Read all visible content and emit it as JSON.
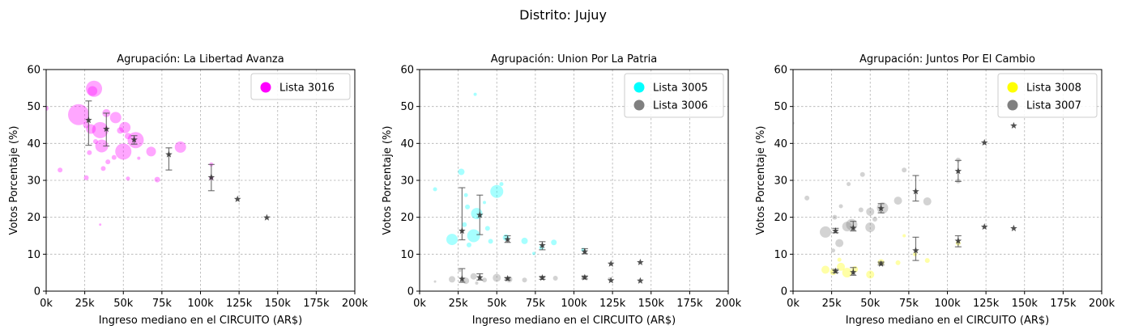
{
  "figure": {
    "suptitle": "Distrito: Jujuy"
  },
  "chart_data": [
    {
      "type": "scatter",
      "title": "Agrupación: La Libertad Avanza",
      "xlabel": "Ingreso mediano en el CIRCUITO (AR$)",
      "ylabel": "Votos Porcentaje (%)",
      "xlim": [
        0,
        200000
      ],
      "ylim": [
        0,
        60
      ],
      "xticks": [
        0,
        25000,
        50000,
        75000,
        100000,
        125000,
        150000,
        175000,
        200000
      ],
      "xtick_labels": [
        "0k",
        "25k",
        "50k",
        "75k",
        "100k",
        "125k",
        "150k",
        "175k",
        "200k"
      ],
      "yticks": [
        0,
        10,
        20,
        30,
        40,
        50,
        60
      ],
      "grid": true,
      "legend_position": "top-right",
      "series": [
        {
          "name": "Lista 3016",
          "color": "#ff00ff",
          "points": [
            {
              "x": 21000,
              "y": 47.8,
              "s": 13
            },
            {
              "x": 31000,
              "y": 54.8,
              "s": 10
            },
            {
              "x": 30000,
              "y": 54.2,
              "s": 6
            },
            {
              "x": 35000,
              "y": 43.6,
              "s": 10
            },
            {
              "x": 29000,
              "y": 43.9,
              "s": 6
            },
            {
              "x": 36000,
              "y": 39.3,
              "s": 8
            },
            {
              "x": 50000,
              "y": 37.8,
              "s": 10
            },
            {
              "x": 58000,
              "y": 40.9,
              "s": 10
            },
            {
              "x": 45000,
              "y": 47.0,
              "s": 7
            },
            {
              "x": 51000,
              "y": 44.3,
              "s": 7
            },
            {
              "x": 68000,
              "y": 37.8,
              "s": 6
            },
            {
              "x": 87000,
              "y": 39.0,
              "s": 7
            },
            {
              "x": 39000,
              "y": 48.2,
              "s": 5
            },
            {
              "x": 48000,
              "y": 43.5,
              "s": 4
            },
            {
              "x": 26000,
              "y": 45.0,
              "s": 4
            },
            {
              "x": 53000,
              "y": 42.0,
              "s": 4
            },
            {
              "x": 28000,
              "y": 37.5,
              "s": 3
            },
            {
              "x": 44000,
              "y": 36.2,
              "s": 3
            },
            {
              "x": 40000,
              "y": 35.0,
              "s": 3
            },
            {
              "x": 37000,
              "y": 33.2,
              "s": 3
            },
            {
              "x": 9000,
              "y": 32.8,
              "s": 3
            },
            {
              "x": 26000,
              "y": 30.7,
              "s": 3
            },
            {
              "x": 53000,
              "y": 30.5,
              "s": 2.5
            },
            {
              "x": 72000,
              "y": 30.2,
              "s": 3.5
            },
            {
              "x": 107000,
              "y": 34.3,
              "s": 2.5
            },
            {
              "x": 107000,
              "y": 30.6,
              "s": 2.5
            },
            {
              "x": 35000,
              "y": 18.0,
              "s": 1.5
            },
            {
              "x": 60000,
              "y": 36.0,
              "s": 2
            },
            {
              "x": 0,
              "y": 49.5,
              "s": 3
            },
            {
              "x": 32000,
              "y": 40.5,
              "s": 3
            }
          ]
        }
      ],
      "summary_stars": [
        {
          "x": 27500,
          "y": 46.3,
          "lo": 39.5,
          "hi": 51.5
        },
        {
          "x": 39000,
          "y": 43.9,
          "lo": 39.3,
          "hi": 48.2
        },
        {
          "x": 57000,
          "y": 41.0,
          "lo": 39.8,
          "hi": 42.1
        },
        {
          "x": 79500,
          "y": 37.0,
          "lo": 32.8,
          "hi": 38.8
        },
        {
          "x": 107000,
          "y": 30.8,
          "lo": 27.2,
          "hi": 34.3
        },
        {
          "x": 124000,
          "y": 24.9,
          "lo": 24.9,
          "hi": 24.9
        },
        {
          "x": 143000,
          "y": 19.9,
          "lo": 19.9,
          "hi": 19.9
        }
      ]
    },
    {
      "type": "scatter",
      "title": "Agrupación: Union Por La Patria",
      "xlabel": "Ingreso mediano en el CIRCUITO (AR$)",
      "ylabel": "Votos Porcentaje (%)",
      "xlim": [
        0,
        200000
      ],
      "ylim": [
        0,
        60
      ],
      "xticks": [
        0,
        25000,
        50000,
        75000,
        100000,
        125000,
        150000,
        175000,
        200000
      ],
      "xtick_labels": [
        "0k",
        "25k",
        "50k",
        "75k",
        "100k",
        "125k",
        "150k",
        "175k",
        "200k"
      ],
      "yticks": [
        0,
        10,
        20,
        30,
        40,
        50,
        60
      ],
      "grid": true,
      "legend_position": "top-right",
      "series": [
        {
          "name": "Lista 3005",
          "color": "#00ffff",
          "points": [
            {
              "x": 21000,
              "y": 14.0,
              "s": 7
            },
            {
              "x": 35000,
              "y": 15.0,
              "s": 8
            },
            {
              "x": 37000,
              "y": 21.0,
              "s": 7
            },
            {
              "x": 50000,
              "y": 27.0,
              "s": 8
            },
            {
              "x": 27000,
              "y": 32.3,
              "s": 4
            },
            {
              "x": 36000,
              "y": 53.3,
              "s": 2
            },
            {
              "x": 10000,
              "y": 27.6,
              "s": 2.5
            },
            {
              "x": 30000,
              "y": 26.0,
              "s": 2.5
            },
            {
              "x": 31000,
              "y": 22.8,
              "s": 3
            },
            {
              "x": 29000,
              "y": 18.0,
              "s": 3
            },
            {
              "x": 44000,
              "y": 17.0,
              "s": 3
            },
            {
              "x": 46000,
              "y": 13.5,
              "s": 3
            },
            {
              "x": 56000,
              "y": 14.5,
              "s": 4
            },
            {
              "x": 68000,
              "y": 13.6,
              "s": 4
            },
            {
              "x": 87000,
              "y": 13.2,
              "s": 3.5
            },
            {
              "x": 79000,
              "y": 11.8,
              "s": 3
            },
            {
              "x": 106000,
              "y": 11.2,
              "s": 2.5
            },
            {
              "x": 53000,
              "y": 29.0,
              "s": 2.5
            },
            {
              "x": 32000,
              "y": 12.5,
              "s": 3
            },
            {
              "x": 42000,
              "y": 24.0,
              "s": 2
            },
            {
              "x": 74000,
              "y": 10.2,
              "s": 2
            }
          ]
        },
        {
          "name": "Lista 3006",
          "color": "#808080",
          "points": [
            {
              "x": 21000,
              "y": 3.2,
              "s": 4
            },
            {
              "x": 30000,
              "y": 2.8,
              "s": 4
            },
            {
              "x": 35000,
              "y": 4.0,
              "s": 4
            },
            {
              "x": 42000,
              "y": 3.0,
              "s": 3
            },
            {
              "x": 50000,
              "y": 3.6,
              "s": 5
            },
            {
              "x": 58000,
              "y": 3.2,
              "s": 4
            },
            {
              "x": 68000,
              "y": 3.0,
              "s": 3
            },
            {
              "x": 88000,
              "y": 3.5,
              "s": 3
            },
            {
              "x": 10000,
              "y": 2.6,
              "s": 1.5
            },
            {
              "x": 26000,
              "y": 5.6,
              "s": 2
            },
            {
              "x": 106000,
              "y": 3.7,
              "s": 2
            },
            {
              "x": 123000,
              "y": 3.3,
              "s": 2
            },
            {
              "x": 37000,
              "y": 2.2,
              "s": 2
            }
          ]
        }
      ],
      "summary_stars": [
        {
          "x": 27500,
          "y": 16.3,
          "lo": 13.9,
          "hi": 28.0
        },
        {
          "x": 39000,
          "y": 20.6,
          "lo": 15.3,
          "hi": 26.0
        },
        {
          "x": 57000,
          "y": 14.0,
          "lo": 13.2,
          "hi": 15.0
        },
        {
          "x": 79500,
          "y": 12.4,
          "lo": 11.2,
          "hi": 13.4
        },
        {
          "x": 107000,
          "y": 10.7,
          "lo": 10.1,
          "hi": 11.5
        },
        {
          "x": 124000,
          "y": 7.4,
          "lo": 7.4,
          "hi": 7.4
        },
        {
          "x": 143000,
          "y": 7.8,
          "lo": 7.8,
          "hi": 7.8
        },
        {
          "x": 27500,
          "y": 3.3,
          "lo": 2.4,
          "hi": 6.1
        },
        {
          "x": 39000,
          "y": 3.7,
          "lo": 3.0,
          "hi": 4.7
        },
        {
          "x": 57000,
          "y": 3.4,
          "lo": 3.0,
          "hi": 3.7
        },
        {
          "x": 79500,
          "y": 3.6,
          "lo": 3.2,
          "hi": 4.0
        },
        {
          "x": 107000,
          "y": 3.7,
          "lo": 3.3,
          "hi": 4.1
        },
        {
          "x": 124000,
          "y": 2.9,
          "lo": 2.9,
          "hi": 2.9
        },
        {
          "x": 143000,
          "y": 2.8,
          "lo": 2.8,
          "hi": 2.8
        }
      ]
    },
    {
      "type": "scatter",
      "title": "Agrupación: Juntos Por El Cambio",
      "xlabel": "Ingreso mediano en el CIRCUITO (AR$)",
      "ylabel": "Votos Porcentaje (%)",
      "xlim": [
        0,
        200000
      ],
      "ylim": [
        0,
        60
      ],
      "xticks": [
        0,
        25000,
        50000,
        75000,
        100000,
        125000,
        150000,
        175000,
        200000
      ],
      "xtick_labels": [
        "0k",
        "25k",
        "50k",
        "75k",
        "100k",
        "125k",
        "150k",
        "175k",
        "200k"
      ],
      "yticks": [
        0,
        10,
        20,
        30,
        40,
        50,
        60
      ],
      "grid": true,
      "legend_position": "top-right",
      "series": [
        {
          "name": "Lista 3008",
          "color": "#ffff00",
          "points": [
            {
              "x": 21000,
              "y": 5.8,
              "s": 5
            },
            {
              "x": 26000,
              "y": 5.2,
              "s": 4
            },
            {
              "x": 31000,
              "y": 6.6,
              "s": 5
            },
            {
              "x": 35000,
              "y": 5.0,
              "s": 6
            },
            {
              "x": 40000,
              "y": 5.9,
              "s": 4
            },
            {
              "x": 50000,
              "y": 4.5,
              "s": 5
            },
            {
              "x": 57000,
              "y": 7.8,
              "s": 4
            },
            {
              "x": 68000,
              "y": 7.7,
              "s": 3
            },
            {
              "x": 87000,
              "y": 8.3,
              "s": 3
            },
            {
              "x": 79000,
              "y": 10.0,
              "s": 2.5
            },
            {
              "x": 72000,
              "y": 15.0,
              "s": 2
            },
            {
              "x": 107000,
              "y": 13.0,
              "s": 3
            },
            {
              "x": 30000,
              "y": 8.5,
              "s": 2.5
            }
          ]
        },
        {
          "name": "Lista 3007",
          "color": "#808080",
          "points": [
            {
              "x": 21000,
              "y": 16.0,
              "s": 7
            },
            {
              "x": 30000,
              "y": 13.0,
              "s": 5
            },
            {
              "x": 35000,
              "y": 17.5,
              "s": 6
            },
            {
              "x": 38000,
              "y": 18.0,
              "s": 7
            },
            {
              "x": 50000,
              "y": 17.3,
              "s": 6
            },
            {
              "x": 50000,
              "y": 21.5,
              "s": 5
            },
            {
              "x": 58000,
              "y": 22.5,
              "s": 7
            },
            {
              "x": 68000,
              "y": 24.5,
              "s": 5
            },
            {
              "x": 87000,
              "y": 24.3,
              "s": 5
            },
            {
              "x": 72000,
              "y": 32.8,
              "s": 3
            },
            {
              "x": 107000,
              "y": 35.5,
              "s": 3
            },
            {
              "x": 107000,
              "y": 29.8,
              "s": 3
            },
            {
              "x": 45000,
              "y": 31.6,
              "s": 3
            },
            {
              "x": 9000,
              "y": 25.2,
              "s": 3
            },
            {
              "x": 36000,
              "y": 29.0,
              "s": 2.5
            },
            {
              "x": 27000,
              "y": 20.0,
              "s": 3
            },
            {
              "x": 44000,
              "y": 22.0,
              "s": 3
            },
            {
              "x": 53000,
              "y": 19.5,
              "s": 3
            },
            {
              "x": 0,
              "y": 45.5,
              "s": 1.5
            },
            {
              "x": 31000,
              "y": 23.0,
              "s": 2.5
            },
            {
              "x": 26000,
              "y": 11.0,
              "s": 2.5
            }
          ]
        }
      ],
      "summary_stars": [
        {
          "x": 27500,
          "y": 16.3,
          "lo": 15.8,
          "hi": 17.0
        },
        {
          "x": 39000,
          "y": 17.1,
          "lo": 16.3,
          "hi": 18.9
        },
        {
          "x": 57000,
          "y": 22.4,
          "lo": 21.2,
          "hi": 23.7
        },
        {
          "x": 79500,
          "y": 27.0,
          "lo": 24.4,
          "hi": 31.3
        },
        {
          "x": 107000,
          "y": 32.5,
          "lo": 29.7,
          "hi": 35.4
        },
        {
          "x": 124000,
          "y": 40.2,
          "lo": 40.2,
          "hi": 40.2
        },
        {
          "x": 143000,
          "y": 44.8,
          "lo": 44.8,
          "hi": 44.8
        },
        {
          "x": 27500,
          "y": 5.4,
          "lo": 5.0,
          "hi": 5.9
        },
        {
          "x": 39000,
          "y": 5.1,
          "lo": 4.3,
          "hi": 6.4
        },
        {
          "x": 57000,
          "y": 7.4,
          "lo": 7.1,
          "hi": 7.9
        },
        {
          "x": 79500,
          "y": 11.0,
          "lo": 8.3,
          "hi": 14.6
        },
        {
          "x": 107000,
          "y": 13.6,
          "lo": 12.0,
          "hi": 15.0
        },
        {
          "x": 124000,
          "y": 17.4,
          "lo": 17.4,
          "hi": 17.4
        },
        {
          "x": 143000,
          "y": 17.0,
          "lo": 17.0,
          "hi": 17.0
        }
      ]
    }
  ]
}
